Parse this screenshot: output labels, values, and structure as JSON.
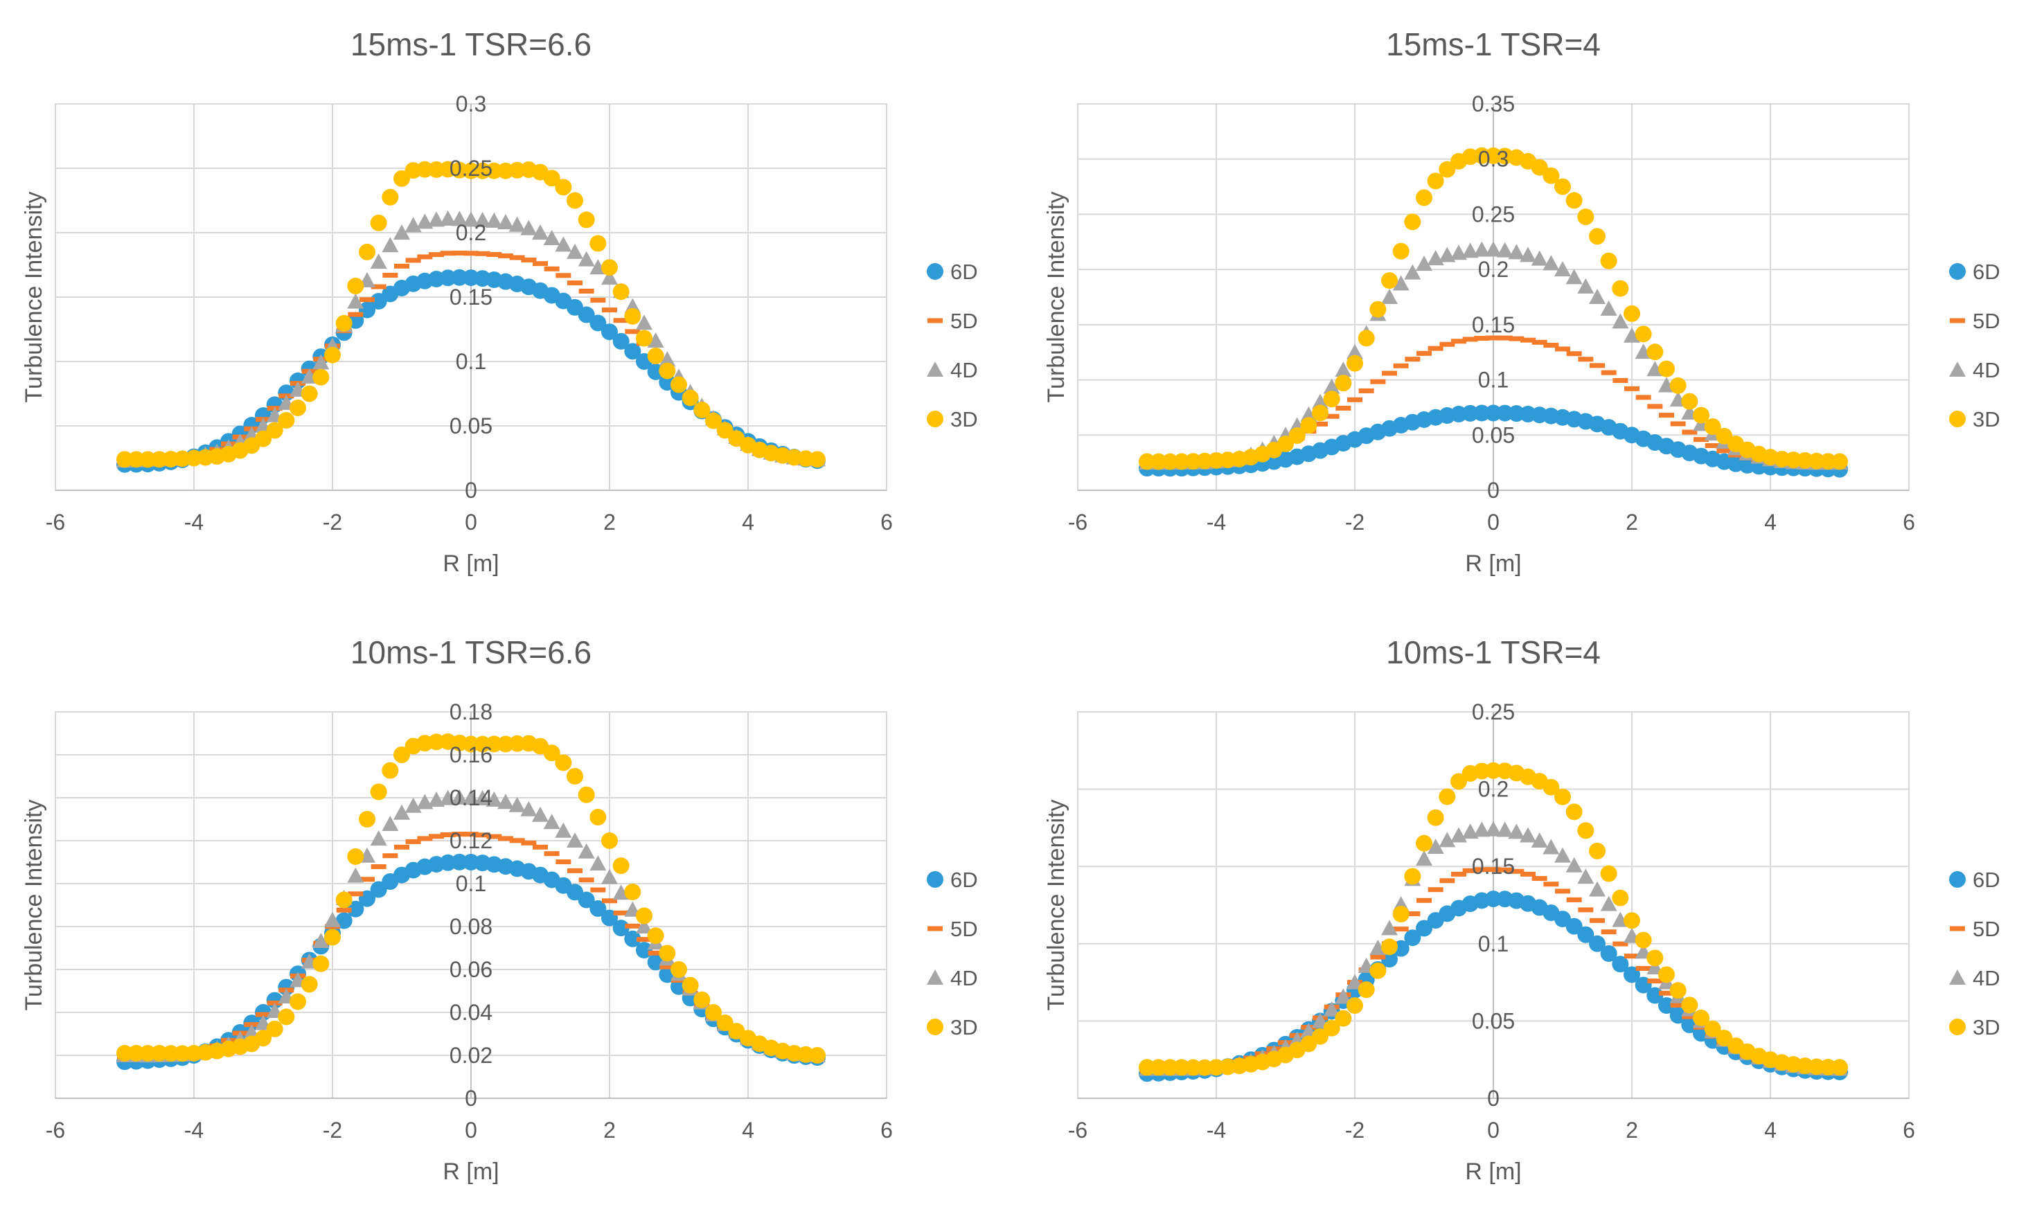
{
  "series_style": [
    {
      "name": "6D",
      "color": "#2E9BD6",
      "marker": "circle"
    },
    {
      "name": "5D",
      "color": "#F47B2A",
      "marker": "dash"
    },
    {
      "name": "4D",
      "color": "#A6A6A6",
      "marker": "triangle"
    },
    {
      "name": "3D",
      "color": "#FFC000",
      "marker": "circle"
    }
  ],
  "chart_data": [
    {
      "type": "scatter",
      "title": "15ms-1 TSR=6.6",
      "xlabel": "R [m]",
      "ylabel": "Turbulence Intensity",
      "xlim": [
        -6,
        6
      ],
      "ylim": [
        0,
        0.3
      ],
      "x_ticks": [
        "-6",
        "-4",
        "-2",
        "0",
        "2",
        "4",
        "6"
      ],
      "y_ticks": [
        "0",
        "0.05",
        "0.1",
        "0.15",
        "0.2",
        "0.25",
        "0.3"
      ],
      "x": [
        -5.0,
        -4.5,
        -4.0,
        -3.5,
        -3.0,
        -2.5,
        -2.0,
        -1.5,
        -1.0,
        -0.5,
        0.0,
        0.5,
        1.0,
        1.5,
        2.0,
        2.5,
        3.0,
        3.5,
        4.0,
        4.5,
        5.0
      ],
      "series": [
        {
          "name": "6D",
          "values": [
            0.02,
            0.021,
            0.026,
            0.038,
            0.058,
            0.085,
            0.113,
            0.14,
            0.157,
            0.164,
            0.165,
            0.162,
            0.155,
            0.142,
            0.123,
            0.1,
            0.076,
            0.055,
            0.038,
            0.028,
            0.023
          ]
        },
        {
          "name": "5D",
          "values": [
            0.022,
            0.023,
            0.026,
            0.036,
            0.055,
            0.083,
            0.112,
            0.148,
            0.174,
            0.183,
            0.184,
            0.182,
            0.176,
            0.161,
            0.14,
            0.114,
            0.083,
            0.055,
            0.036,
            0.027,
            0.023
          ]
        },
        {
          "name": "4D",
          "values": [
            0.023,
            0.024,
            0.026,
            0.033,
            0.05,
            0.078,
            0.112,
            0.163,
            0.2,
            0.21,
            0.21,
            0.208,
            0.2,
            0.185,
            0.165,
            0.13,
            0.088,
            0.056,
            0.036,
            0.027,
            0.024
          ]
        },
        {
          "name": "3D",
          "values": [
            0.024,
            0.024,
            0.025,
            0.028,
            0.04,
            0.064,
            0.105,
            0.185,
            0.242,
            0.249,
            0.248,
            0.248,
            0.247,
            0.225,
            0.173,
            0.118,
            0.082,
            0.054,
            0.035,
            0.027,
            0.024
          ]
        }
      ]
    },
    {
      "type": "scatter",
      "title": "15ms-1 TSR=4",
      "xlabel": "R [m]",
      "ylabel": "Turbulence Intensity",
      "xlim": [
        -6,
        6
      ],
      "ylim": [
        0,
        0.35
      ],
      "x_ticks": [
        "-6",
        "-4",
        "-2",
        "0",
        "2",
        "4",
        "6"
      ],
      "y_ticks": [
        "0",
        "0.05",
        "0.1",
        "0.15",
        "0.2",
        "0.25",
        "0.3",
        "0.35"
      ],
      "x": [
        -5.0,
        -4.5,
        -4.0,
        -3.5,
        -3.0,
        -2.5,
        -2.0,
        -1.5,
        -1.0,
        -0.5,
        0.0,
        0.5,
        1.0,
        1.5,
        2.0,
        2.5,
        3.0,
        3.5,
        4.0,
        4.5,
        5.0
      ],
      "series": [
        {
          "name": "6D",
          "values": [
            0.02,
            0.02,
            0.021,
            0.023,
            0.028,
            0.036,
            0.046,
            0.056,
            0.064,
            0.069,
            0.07,
            0.069,
            0.066,
            0.06,
            0.05,
            0.04,
            0.031,
            0.024,
            0.021,
            0.02,
            0.019
          ]
        },
        {
          "name": "5D",
          "values": [
            0.024,
            0.024,
            0.025,
            0.03,
            0.042,
            0.06,
            0.082,
            0.106,
            0.124,
            0.135,
            0.138,
            0.136,
            0.128,
            0.113,
            0.092,
            0.068,
            0.046,
            0.032,
            0.026,
            0.024,
            0.024
          ]
        },
        {
          "name": "4D",
          "values": [
            0.025,
            0.025,
            0.026,
            0.032,
            0.05,
            0.08,
            0.125,
            0.175,
            0.205,
            0.215,
            0.218,
            0.213,
            0.2,
            0.175,
            0.14,
            0.095,
            0.06,
            0.038,
            0.028,
            0.025,
            0.025
          ]
        },
        {
          "name": "3D",
          "values": [
            0.026,
            0.026,
            0.027,
            0.03,
            0.042,
            0.07,
            0.115,
            0.19,
            0.265,
            0.298,
            0.303,
            0.298,
            0.275,
            0.23,
            0.16,
            0.11,
            0.068,
            0.042,
            0.03,
            0.027,
            0.026
          ]
        }
      ]
    },
    {
      "type": "scatter",
      "title": "10ms-1 TSR=6.6",
      "xlabel": "R [m]",
      "ylabel": "Turbulence Intensity",
      "xlim": [
        -6,
        6
      ],
      "ylim": [
        0,
        0.18
      ],
      "x_ticks": [
        "-6",
        "-4",
        "-2",
        "0",
        "2",
        "4",
        "6"
      ],
      "y_ticks": [
        "0",
        "0.02",
        "0.04",
        "0.06",
        "0.08",
        "0.1",
        "0.12",
        "0.14",
        "0.16",
        "0.18"
      ],
      "x": [
        -5.0,
        -4.5,
        -4.0,
        -3.5,
        -3.0,
        -2.5,
        -2.0,
        -1.5,
        -1.0,
        -0.5,
        0.0,
        0.5,
        1.0,
        1.5,
        2.0,
        2.5,
        3.0,
        3.5,
        4.0,
        4.5,
        5.0
      ],
      "series": [
        {
          "name": "6D",
          "values": [
            0.017,
            0.018,
            0.02,
            0.027,
            0.04,
            0.058,
            0.077,
            0.093,
            0.104,
            0.109,
            0.11,
            0.108,
            0.104,
            0.096,
            0.084,
            0.069,
            0.052,
            0.037,
            0.027,
            0.021,
            0.019
          ]
        },
        {
          "name": "5D",
          "values": [
            0.019,
            0.019,
            0.021,
            0.027,
            0.039,
            0.057,
            0.08,
            0.102,
            0.117,
            0.122,
            0.123,
            0.121,
            0.117,
            0.106,
            0.092,
            0.074,
            0.055,
            0.038,
            0.027,
            0.022,
            0.019
          ]
        },
        {
          "name": "4D",
          "values": [
            0.02,
            0.02,
            0.021,
            0.025,
            0.035,
            0.055,
            0.083,
            0.113,
            0.133,
            0.139,
            0.14,
            0.138,
            0.132,
            0.12,
            0.103,
            0.08,
            0.058,
            0.039,
            0.028,
            0.022,
            0.02
          ]
        },
        {
          "name": "3D",
          "values": [
            0.021,
            0.021,
            0.021,
            0.023,
            0.028,
            0.045,
            0.075,
            0.13,
            0.16,
            0.166,
            0.165,
            0.165,
            0.164,
            0.15,
            0.12,
            0.085,
            0.06,
            0.04,
            0.028,
            0.022,
            0.02
          ]
        }
      ]
    },
    {
      "type": "scatter",
      "title": "10ms-1 TSR=4",
      "xlabel": "R [m]",
      "ylabel": "Turbulence Intensity",
      "xlim": [
        -6,
        6
      ],
      "ylim": [
        0,
        0.25
      ],
      "x_ticks": [
        "-6",
        "-4",
        "-2",
        "0",
        "2",
        "4",
        "6"
      ],
      "y_ticks": [
        "0",
        "0.05",
        "0.1",
        "0.15",
        "0.2",
        "0.25"
      ],
      "x": [
        -5.0,
        -4.5,
        -4.0,
        -3.5,
        -3.0,
        -2.5,
        -2.0,
        -1.5,
        -1.0,
        -0.5,
        0.0,
        0.5,
        1.0,
        1.5,
        2.0,
        2.5,
        3.0,
        3.5,
        4.0,
        4.5,
        5.0
      ],
      "series": [
        {
          "name": "6D",
          "values": [
            0.016,
            0.017,
            0.019,
            0.025,
            0.035,
            0.05,
            0.07,
            0.09,
            0.11,
            0.123,
            0.129,
            0.126,
            0.116,
            0.1,
            0.08,
            0.06,
            0.042,
            0.03,
            0.022,
            0.018,
            0.017
          ]
        },
        {
          "name": "5D",
          "values": [
            0.018,
            0.018,
            0.02,
            0.026,
            0.036,
            0.052,
            0.075,
            0.1,
            0.128,
            0.145,
            0.148,
            0.145,
            0.134,
            0.115,
            0.092,
            0.068,
            0.046,
            0.031,
            0.023,
            0.019,
            0.018
          ]
        },
        {
          "name": "4D",
          "values": [
            0.019,
            0.019,
            0.02,
            0.024,
            0.033,
            0.05,
            0.075,
            0.11,
            0.155,
            0.17,
            0.174,
            0.17,
            0.157,
            0.135,
            0.105,
            0.075,
            0.05,
            0.033,
            0.024,
            0.02,
            0.019
          ]
        },
        {
          "name": "3D",
          "values": [
            0.02,
            0.02,
            0.02,
            0.022,
            0.028,
            0.04,
            0.06,
            0.098,
            0.165,
            0.205,
            0.212,
            0.208,
            0.195,
            0.16,
            0.115,
            0.08,
            0.052,
            0.034,
            0.025,
            0.021,
            0.02
          ]
        }
      ]
    }
  ]
}
